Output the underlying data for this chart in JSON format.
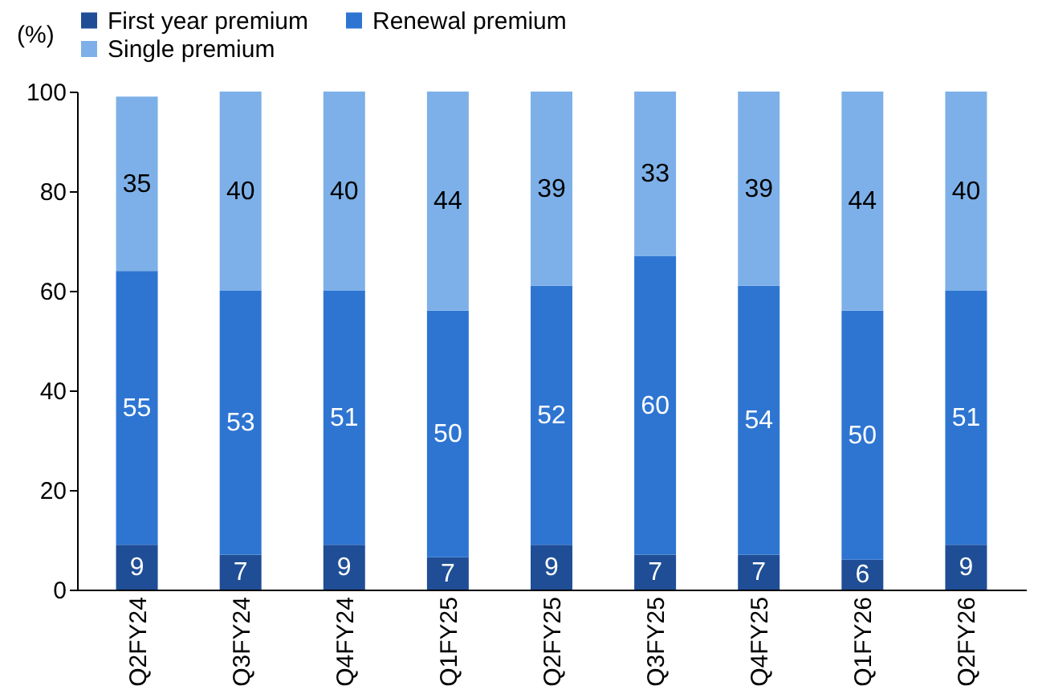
{
  "chart_data": {
    "type": "bar",
    "stacked": true,
    "ylabel": "(%)",
    "categories": [
      "Q2FY24",
      "Q3FY24",
      "Q4FY24",
      "Q1FY25",
      "Q2FY25",
      "Q3FY25",
      "Q4FY25",
      "Q1FY26",
      "Q2FY26"
    ],
    "series": [
      {
        "name": "First year premium",
        "color": "#1f4e96",
        "values": [
          9,
          7,
          9,
          6.5,
          9,
          7,
          7,
          6,
          9
        ],
        "value_labels": [
          "9",
          "7",
          "9",
          "7",
          "9",
          "7",
          "7",
          "6",
          "9"
        ]
      },
      {
        "name": "Renewal premium",
        "color": "#2e75d2",
        "values": [
          55,
          53,
          51,
          49.5,
          52,
          60,
          54,
          50,
          51
        ],
        "value_labels": [
          "55",
          "53",
          "51",
          "50",
          "52",
          "60",
          "54",
          "50",
          "51"
        ]
      },
      {
        "name": "Single premium",
        "color": "#7db0e8",
        "values": [
          35,
          40,
          40,
          44,
          39,
          33,
          39,
          44,
          40
        ],
        "value_labels": [
          "35",
          "40",
          "40",
          "44",
          "39",
          "33",
          "39",
          "44",
          "40"
        ]
      }
    ],
    "ylim": [
      0,
      100
    ],
    "yticks": [
      0,
      20,
      40,
      60,
      80,
      100
    ],
    "grid": false,
    "legend": "top"
  }
}
